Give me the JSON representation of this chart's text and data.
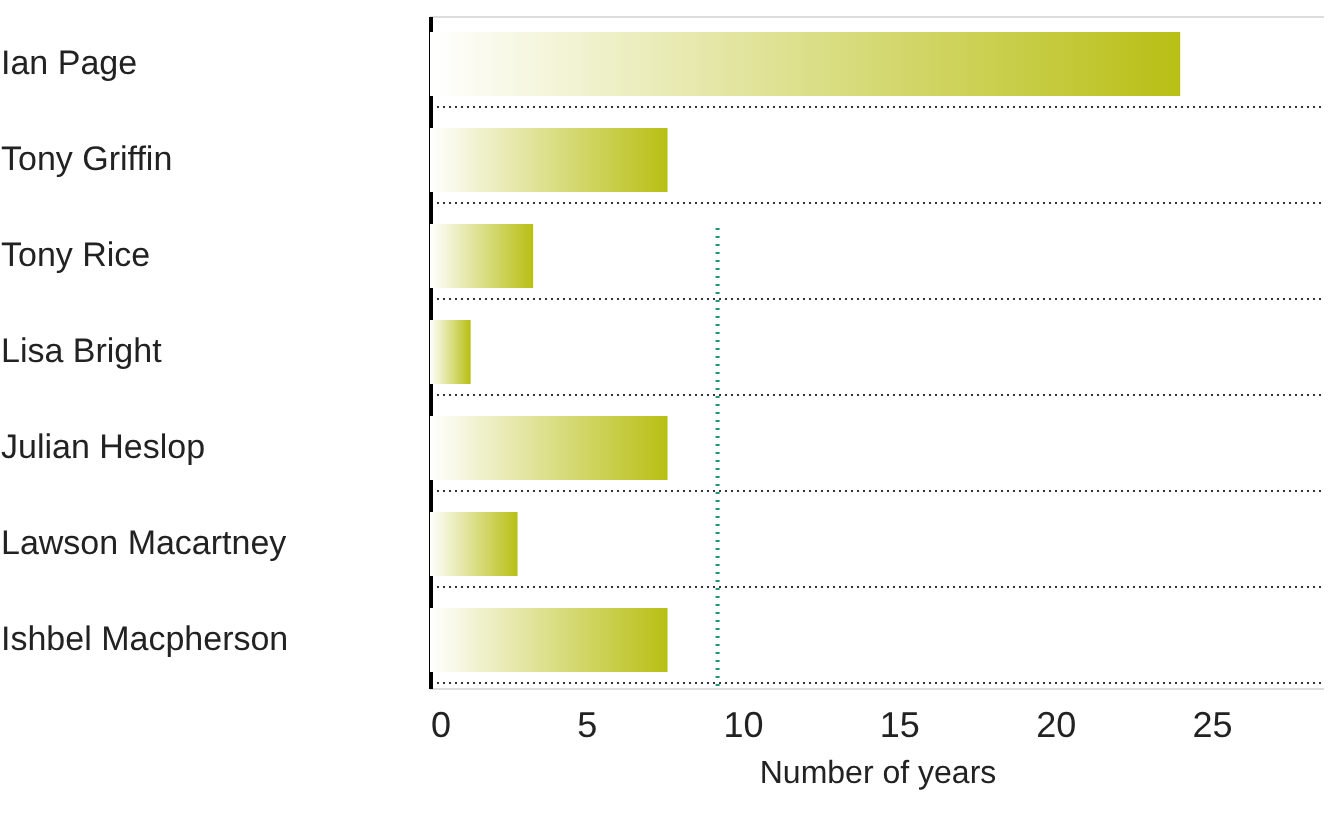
{
  "chart_data": {
    "type": "bar",
    "orientation": "horizontal",
    "xlabel": "Number of years",
    "categories": [
      "Ian Page",
      "Tony Griffin",
      "Tony Rice",
      "Lisa Bright",
      "Julian Heslop",
      "Lawson Macartney",
      "Ishbel Macpherson"
    ],
    "values": [
      24,
      7.6,
      3.3,
      1.3,
      7.6,
      2.8,
      7.6
    ],
    "color": "#b8bf14",
    "xlim": [
      0,
      28.6
    ],
    "xticks": [
      0,
      5,
      10,
      15,
      20,
      25
    ],
    "grid": "y",
    "ref_lines": [
      {
        "axis": "x",
        "value": 9.2,
        "color": "#1a9a6a",
        "line_style": "dotted"
      }
    ]
  }
}
